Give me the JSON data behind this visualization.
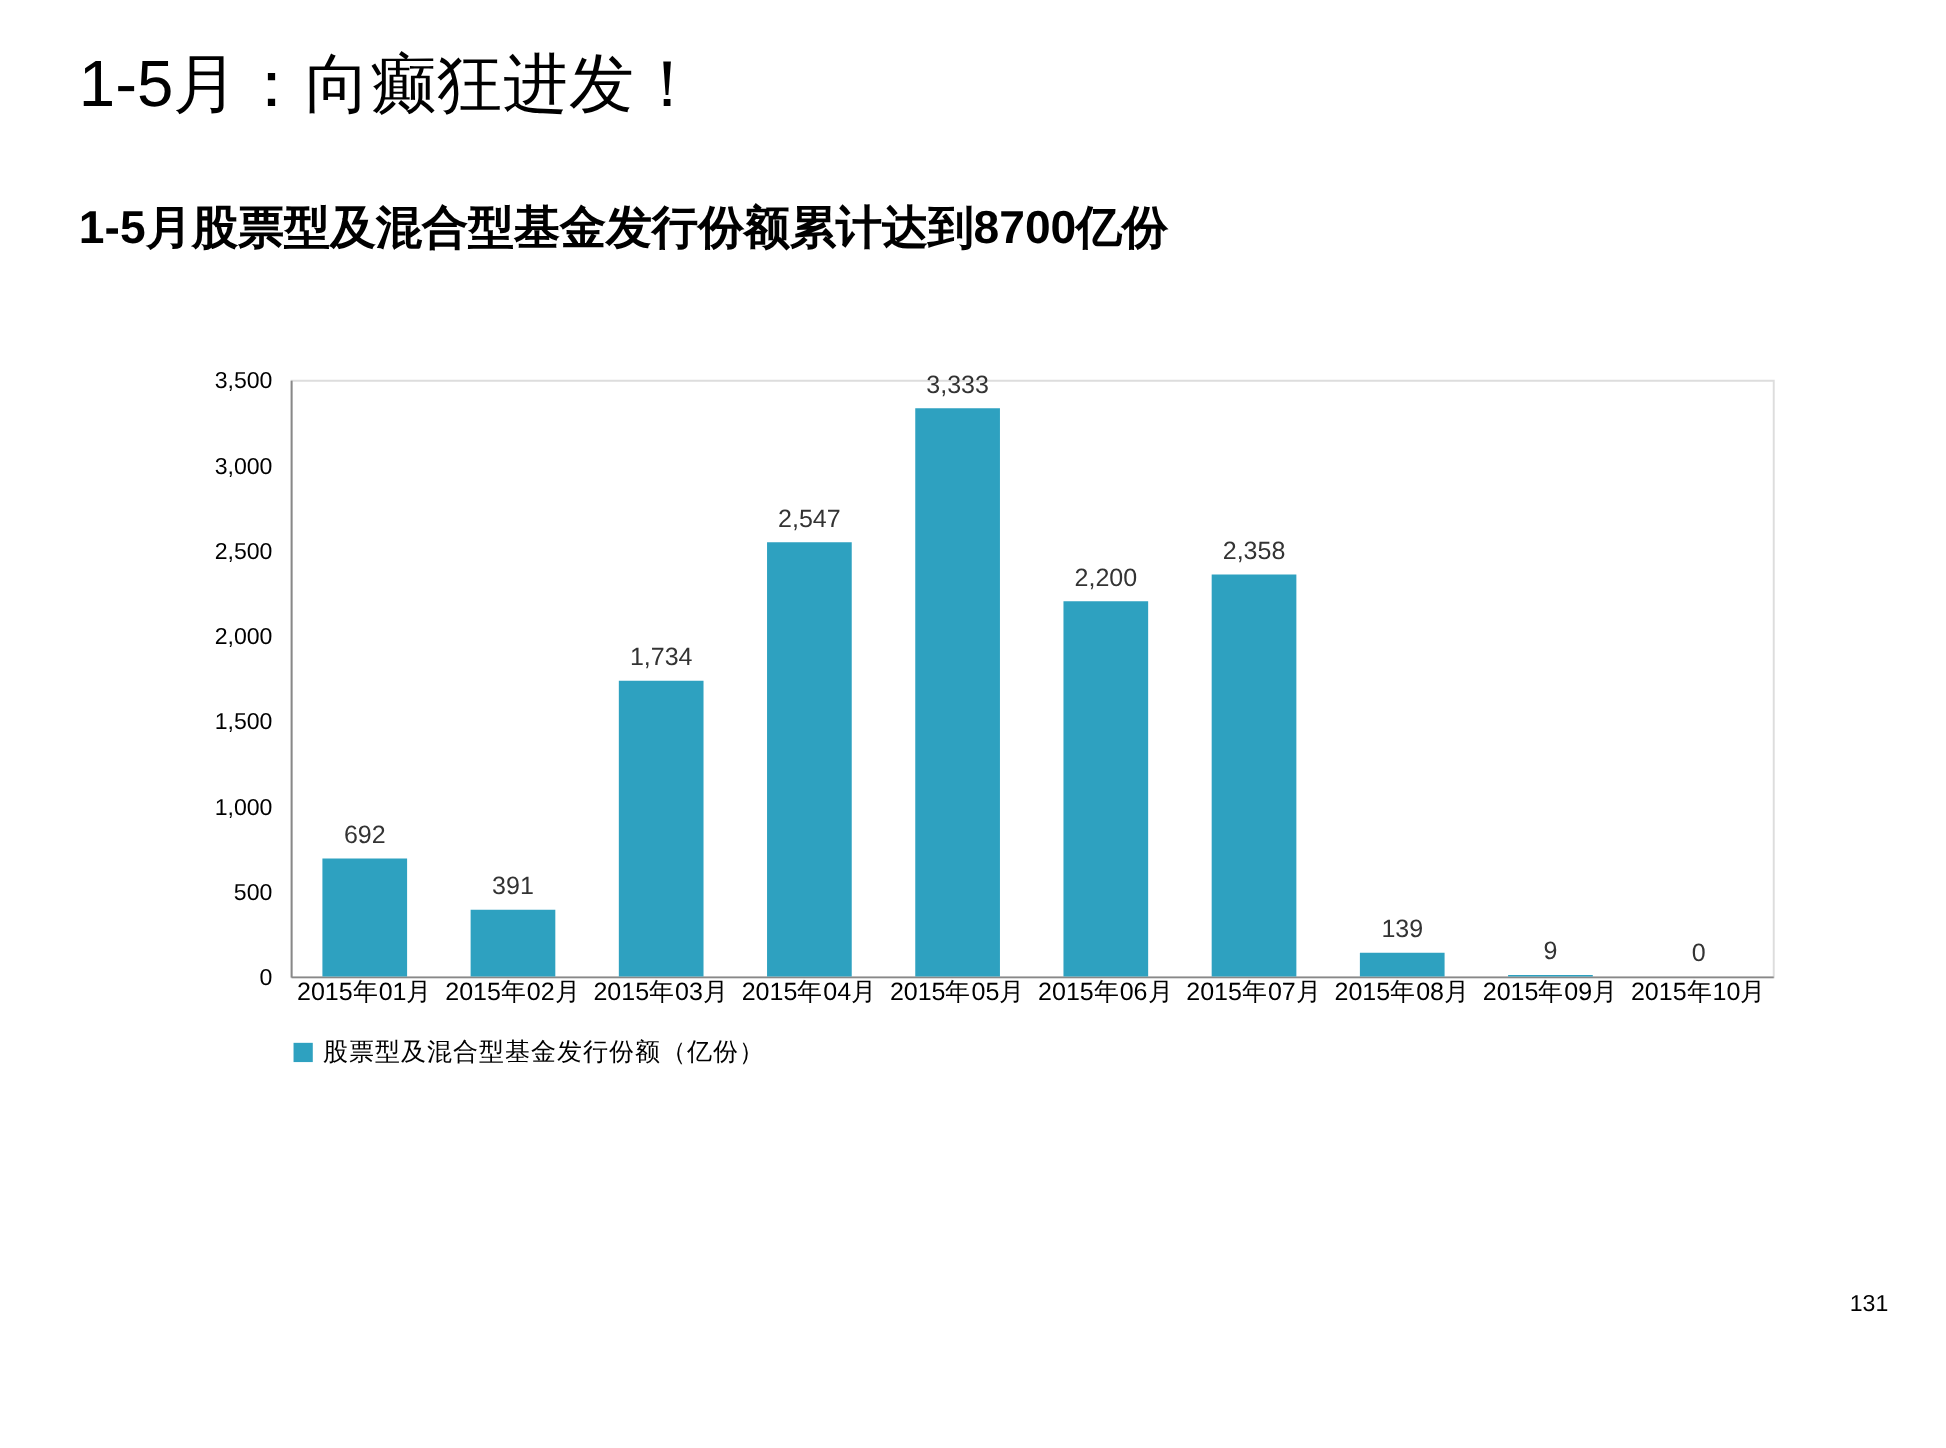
{
  "chart_data": {
    "type": "bar",
    "title": "1-5月：向癫狂进发！",
    "subtitle": "1-5月股票型及混合型基金发行份额累计达到8700亿份",
    "categories": [
      "2015年01月",
      "2015年02月",
      "2015年03月",
      "2015年04月",
      "2015年05月",
      "2015年06月",
      "2015年07月",
      "2015年08月",
      "2015年09月",
      "2015年10月"
    ],
    "series": [
      {
        "name": "股票型及混合型基金发行份额（亿份）",
        "color": "#2ea1c0",
        "values": [
          692,
          391,
          1734,
          2547,
          3333,
          2200,
          2358,
          139,
          9,
          0
        ]
      }
    ],
    "value_labels": [
      "692",
      "391",
      "1,734",
      "2,547",
      "3,333",
      "2,200",
      "2,358",
      "139",
      "9",
      "0"
    ],
    "ylim": [
      0,
      3500
    ],
    "yticks": [
      0,
      {
        "value": 500,
        "label": "500"
      },
      {
        "value": 1000,
        "label": "1,000"
      },
      {
        "value": 1500,
        "label": "1,500"
      },
      {
        "value": 2000,
        "label": "2,000"
      },
      {
        "value": 2500,
        "label": "2,500"
      },
      {
        "value": 3000,
        "label": "3,000"
      },
      {
        "value": 3500,
        "label": "3,500"
      }
    ],
    "legend": "bottom",
    "grid": false,
    "annotations": [
      "131"
    ]
  }
}
